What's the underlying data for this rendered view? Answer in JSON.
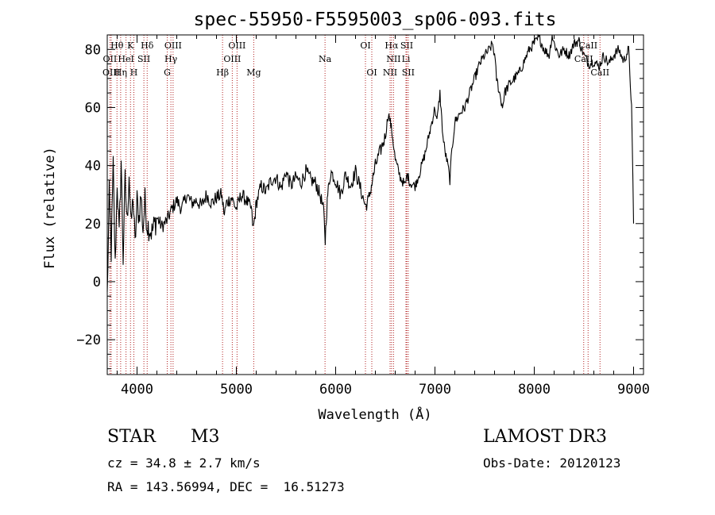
{
  "chart_data": {
    "type": "line",
    "title": "spec-55950-F5595003_sp06-093.fits",
    "xlabel": "Wavelength (Å)",
    "ylabel": "Flux (relative)",
    "xlim": [
      3700,
      9100
    ],
    "ylim": [
      -32,
      85
    ],
    "xticks": [
      4000,
      5000,
      6000,
      7000,
      8000,
      9000
    ],
    "xtick_labels": [
      "4000",
      "5000",
      "6000",
      "7000",
      "8000",
      "9000"
    ],
    "yticks": [
      -20,
      0,
      20,
      40,
      60,
      80
    ],
    "ytick_labels": [
      "−20",
      "0",
      "20",
      "40",
      "60",
      "80"
    ],
    "line_color": "#000000",
    "marker_color": "#b22222",
    "spectrum": {
      "name": "flux",
      "x": [
        3700,
        3720,
        3740,
        3760,
        3780,
        3800,
        3820,
        3840,
        3860,
        3880,
        3900,
        3920,
        3940,
        3960,
        3980,
        4000,
        4020,
        4040,
        4060,
        4080,
        4100,
        4150,
        4200,
        4250,
        4300,
        4350,
        4400,
        4450,
        4500,
        4550,
        4600,
        4650,
        4700,
        4750,
        4800,
        4850,
        4880,
        4900,
        4950,
        5000,
        5050,
        5100,
        5150,
        5170,
        5185,
        5200,
        5250,
        5300,
        5350,
        5400,
        5450,
        5500,
        5550,
        5600,
        5650,
        5700,
        5750,
        5800,
        5850,
        5880,
        5895,
        5905,
        5920,
        5950,
        6000,
        6050,
        6100,
        6150,
        6200,
        6250,
        6300,
        6330,
        6360,
        6400,
        6450,
        6500,
        6530,
        6550,
        6565,
        6580,
        6600,
        6650,
        6700,
        6720,
        6750,
        6800,
        6850,
        6900,
        6950,
        7000,
        7020,
        7050,
        7080,
        7100,
        7130,
        7150,
        7170,
        7200,
        7250,
        7300,
        7350,
        7400,
        7450,
        7500,
        7550,
        7580,
        7600,
        7620,
        7650,
        7680,
        7700,
        7750,
        7800,
        7850,
        7900,
        7950,
        8000,
        8050,
        8100,
        8150,
        8180,
        8200,
        8250,
        8300,
        8350,
        8400,
        8450,
        8500,
        8550,
        8600,
        8650,
        8700,
        8750,
        8800,
        8850,
        8900,
        8950,
        8980,
        9000
      ],
      "y": [
        -5,
        30,
        10,
        40,
        5,
        35,
        15,
        42,
        8,
        35,
        20,
        38,
        18,
        30,
        12,
        28,
        22,
        30,
        18,
        28,
        20,
        17,
        22,
        19,
        21,
        25,
        28,
        25,
        30,
        27,
        28,
        26,
        30,
        27,
        29,
        30,
        23,
        27,
        29,
        25,
        30,
        28,
        25,
        18,
        22,
        27,
        33,
        31,
        35,
        36,
        32,
        38,
        33,
        36,
        34,
        38,
        35,
        34,
        29,
        24,
        14,
        22,
        30,
        38,
        35,
        30,
        37,
        33,
        38,
        32,
        26,
        28,
        33,
        40,
        45,
        50,
        58,
        55,
        52,
        48,
        42,
        36,
        33,
        37,
        34,
        33,
        38,
        44,
        52,
        60,
        55,
        65,
        50,
        45,
        40,
        35,
        45,
        55,
        58,
        60,
        65,
        70,
        75,
        78,
        80,
        82,
        78,
        70,
        65,
        60,
        65,
        68,
        70,
        72,
        76,
        80,
        82,
        84,
        80,
        78,
        85,
        82,
        78,
        80,
        78,
        82,
        83,
        78,
        75,
        76,
        74,
        78,
        75,
        78,
        80,
        76,
        80,
        60,
        20
      ]
    },
    "line_markers": [
      {
        "label": "Hθ",
        "wl": 3798,
        "row": 0
      },
      {
        "label": "OII",
        "wl": 3727,
        "row": 1
      },
      {
        "label": "OIII",
        "wl": 3740,
        "row": 2
      },
      {
        "label": "K",
        "wl": 3934,
        "row": 0
      },
      {
        "label": "HeI",
        "wl": 3889,
        "row": 1
      },
      {
        "label": "Hη",
        "wl": 3835,
        "row": 2
      },
      {
        "label": "SII",
        "wl": 4069,
        "row": 1
      },
      {
        "label": "H",
        "wl": 3968,
        "row": 2
      },
      {
        "label": "Hδ",
        "wl": 4102,
        "row": 0
      },
      {
        "label": "OIII",
        "wl": 4363,
        "row": 0
      },
      {
        "label": "Hγ",
        "wl": 4341,
        "row": 1
      },
      {
        "label": "G",
        "wl": 4304,
        "row": 2
      },
      {
        "label": "Hβ",
        "wl": 4861,
        "row": 2
      },
      {
        "label": "OIII",
        "wl": 5007,
        "row": 0
      },
      {
        "label": "OIII",
        "wl": 4959,
        "row": 1
      },
      {
        "label": "Mg",
        "wl": 5175,
        "row": 2
      },
      {
        "label": "Na",
        "wl": 5893,
        "row": 1
      },
      {
        "label": "OI",
        "wl": 6300,
        "row": 0
      },
      {
        "label": "OI",
        "wl": 6364,
        "row": 2
      },
      {
        "label": "Hα",
        "wl": 6563,
        "row": 0
      },
      {
        "label": "SII",
        "wl": 6716,
        "row": 0
      },
      {
        "label": "NII",
        "wl": 6583,
        "row": 1
      },
      {
        "label": "Li",
        "wl": 6708,
        "row": 1
      },
      {
        "label": "NII",
        "wl": 6548,
        "row": 2
      },
      {
        "label": "SII",
        "wl": 6731,
        "row": 2
      },
      {
        "label": "CaII",
        "wl": 8542,
        "row": 0
      },
      {
        "label": "CaII",
        "wl": 8498,
        "row": 1
      },
      {
        "label": "CaII",
        "wl": 8662,
        "row": 2
      }
    ]
  },
  "info": {
    "object_class": "STAR",
    "subclass": "M3",
    "survey": "LAMOST DR3",
    "cz_line": "cz = 34.8 ± 2.7 km/s",
    "obs_date_line": "Obs-Date: 20120123",
    "radec_line": "RA = 143.56994, DEC =  16.51273"
  }
}
